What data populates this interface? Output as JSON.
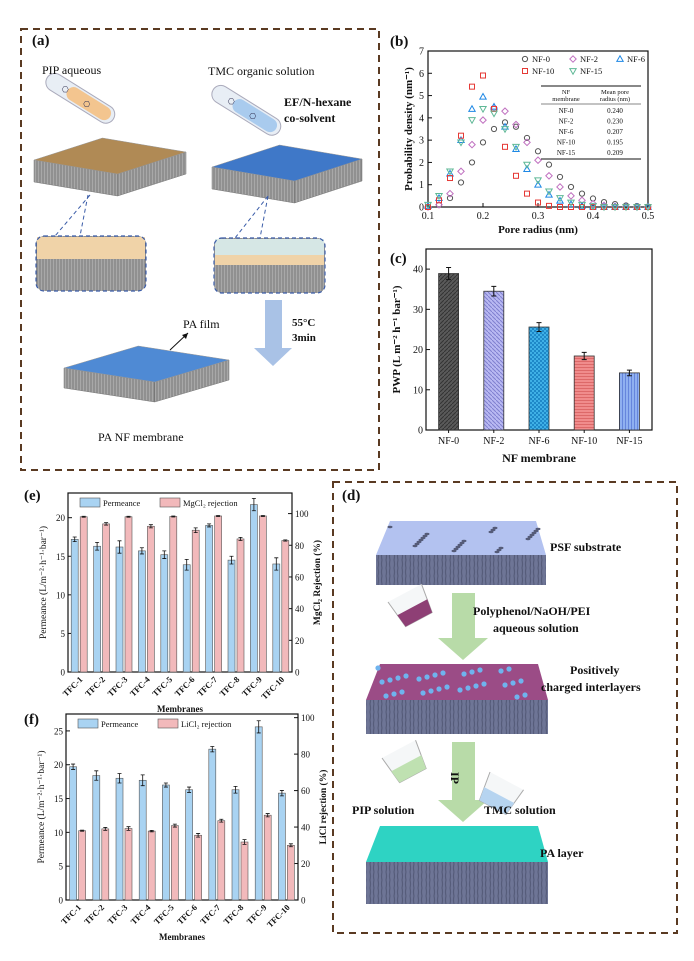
{
  "panel_a": {
    "label": "(a)",
    "pip_aqueous": "PIP aqueous",
    "tmc_organic": "TMC organic solution",
    "cosolvent_line1": "EF/N-hexane",
    "cosolvent_line2": "co-solvent",
    "pa_film": "PA film",
    "temperature": "55°C",
    "time": "3min",
    "pa_nf_membrane": "PA NF membrane"
  },
  "panel_d": {
    "label": "(d)",
    "psf_substrate": "PSF substrate",
    "solution_line1": "Polyphenol/NaOH/PEI",
    "solution_line2": "aqueous solution",
    "interlayer_line1": "Positively",
    "interlayer_line2": "charged interlayers",
    "ip": "IP",
    "pip_solution": "PIP solution",
    "tmc_solution": "TMC solution",
    "pa_layer": "PA layer"
  },
  "colors": {
    "frame": "#5a3a22",
    "nf0": "#555555",
    "nf2": "#c070c0",
    "nf6": "#1e88e5",
    "nf10": "#e53935",
    "nf15": "#5fb896",
    "permeance": "#a9d3f2",
    "rejection": "#f2b9bb"
  },
  "chart_data": [
    {
      "panel": "(b)",
      "type": "scatter",
      "xlabel": "Pore radius (nm)",
      "ylabel": "Probability density (nm⁻¹)",
      "xlim": [
        0.1,
        0.5
      ],
      "ylim": [
        0,
        7
      ],
      "xticks": [
        "0.1",
        "0.2",
        "0.3",
        "0.4",
        "0.5"
      ],
      "yticks": [
        "0",
        "1",
        "2",
        "3",
        "4",
        "5",
        "6",
        "7"
      ],
      "legend_position": "top-right",
      "x": [
        0.1,
        0.12,
        0.14,
        0.16,
        0.18,
        0.2,
        0.22,
        0.24,
        0.26,
        0.28,
        0.3,
        0.32,
        0.34,
        0.36,
        0.38,
        0.4,
        0.42,
        0.44,
        0.46,
        0.48,
        0.5
      ],
      "series": [
        {
          "name": "NF-0",
          "marker": "circle",
          "values": [
            0,
            0.1,
            0.4,
            1.1,
            2.0,
            2.9,
            3.5,
            3.8,
            3.6,
            3.1,
            2.5,
            1.9,
            1.35,
            0.9,
            0.6,
            0.38,
            0.22,
            0.13,
            0.07,
            0.04,
            0.02
          ]
        },
        {
          "name": "NF-2",
          "marker": "diamond",
          "values": [
            0,
            0.1,
            0.6,
            1.6,
            2.8,
            3.9,
            4.45,
            4.3,
            3.7,
            2.9,
            2.1,
            1.4,
            0.9,
            0.5,
            0.3,
            0.15,
            0.07,
            0.03,
            0.01,
            0,
            0
          ]
        },
        {
          "name": "NF-6",
          "marker": "triangle-up",
          "values": [
            0.05,
            0.4,
            1.5,
            3.0,
            4.4,
            4.95,
            4.5,
            3.6,
            2.6,
            1.7,
            1.0,
            0.55,
            0.28,
            0.12,
            0.05,
            0.02,
            0,
            0,
            0,
            0,
            0
          ]
        },
        {
          "name": "NF-10",
          "marker": "square",
          "values": [
            0,
            0.3,
            1.3,
            3.2,
            5.4,
            5.9,
            4.4,
            2.7,
            1.4,
            0.6,
            0.2,
            0.05,
            0,
            0,
            0,
            0,
            0,
            0,
            0,
            0,
            0
          ]
        },
        {
          "name": "NF-15",
          "marker": "triangle-down",
          "values": [
            0.1,
            0.5,
            1.6,
            2.9,
            3.9,
            4.4,
            4.2,
            3.5,
            2.7,
            1.9,
            1.2,
            0.7,
            0.4,
            0.2,
            0.1,
            0.04,
            0,
            0,
            0,
            0,
            0
          ]
        }
      ],
      "inset_table": {
        "headers": [
          "NF membrane",
          "Mean pore radius (nm)"
        ],
        "rows": [
          [
            "NF-0",
            "0.240"
          ],
          [
            "NF-2",
            "0.230"
          ],
          [
            "NF-6",
            "0.207"
          ],
          [
            "NF-10",
            "0.195"
          ],
          [
            "NF-15",
            "0.209"
          ]
        ]
      }
    },
    {
      "panel": "(c)",
      "type": "bar",
      "xlabel": "NF membrane",
      "ylabel": "PWP (L m⁻² h⁻¹ bar⁻¹)",
      "ylim": [
        0,
        45
      ],
      "yticks": [
        "0",
        "10",
        "20",
        "30",
        "40"
      ],
      "categories": [
        "NF-0",
        "NF-2",
        "NF-6",
        "NF-10",
        "NF-15"
      ],
      "values": [
        38.9,
        34.5,
        25.6,
        18.4,
        14.2
      ],
      "errors": [
        1.5,
        1.2,
        1.1,
        0.9,
        0.7
      ]
    },
    {
      "panel": "(e)",
      "type": "bar",
      "xlabel": "Membranes",
      "ylabel": "Permeance (L/m⁻²·h⁻¹·bar⁻¹)",
      "ylabel_right": "MgCl₂ Rejection (%)",
      "ylim": [
        0,
        23.2
      ],
      "ylim_right": [
        0,
        113
      ],
      "yticks": [
        "0",
        "5",
        "10",
        "15",
        "20"
      ],
      "yticks_right": [
        "0",
        "20",
        "40",
        "60",
        "80",
        "100"
      ],
      "legend_position": "top",
      "categories": [
        "TFC-1",
        "TFC-2",
        "TFC-3",
        "TFC-4",
        "TFC-5",
        "TFC-6",
        "TFC-7",
        "TFC-8",
        "TFC-9",
        "TFC-10"
      ],
      "series": [
        {
          "name": "Permeance",
          "axis": "left",
          "values": [
            17.2,
            16.3,
            16.2,
            15.7,
            15.2,
            13.9,
            19.0,
            14.5,
            21.7,
            14.0
          ],
          "errors": [
            0.3,
            0.5,
            0.8,
            0.4,
            0.5,
            0.7,
            0.2,
            0.5,
            0.8,
            0.8
          ]
        },
        {
          "name": "MgCl₂ rejection",
          "axis": "right",
          "values": [
            98.0,
            93.5,
            98.0,
            92.0,
            98.2,
            89.5,
            98.5,
            84.0,
            98.5,
            83.0
          ],
          "errors": [
            0.3,
            0.8,
            0.3,
            1.0,
            0.3,
            1.5,
            0.3,
            1.0,
            0.3,
            0.4
          ]
        }
      ]
    },
    {
      "panel": "(f)",
      "type": "bar",
      "xlabel": "Membranes",
      "ylabel": "Permeance (L/m⁻²·h⁻¹·bar⁻¹)",
      "ylabel_right": "LiCl rejection (%)",
      "ylim": [
        0,
        27.5
      ],
      "ylim_right": [
        0,
        102
      ],
      "yticks": [
        "0",
        "5",
        "10",
        "15",
        "20",
        "25"
      ],
      "yticks_right": [
        "0",
        "20",
        "40",
        "60",
        "80",
        "100"
      ],
      "legend_position": "top",
      "categories": [
        "TFC-1",
        "TFC-2",
        "TFC-3",
        "TFC-4",
        "TFC-5",
        "TFC-6",
        "TFC-7",
        "TFC-8",
        "TFC-9",
        "TFC-10"
      ],
      "series": [
        {
          "name": "Permeance",
          "axis": "left",
          "values": [
            19.7,
            18.4,
            18.0,
            17.7,
            17.0,
            16.3,
            22.3,
            16.3,
            25.6,
            15.8
          ],
          "errors": [
            0.4,
            0.7,
            0.7,
            0.8,
            0.3,
            0.4,
            0.4,
            0.5,
            0.9,
            0.4
          ]
        },
        {
          "name": "LiCl₂ rejection",
          "axis": "right",
          "values": [
            38.0,
            39.0,
            39.2,
            37.8,
            40.8,
            35.5,
            43.5,
            31.8,
            46.5,
            30.0
          ],
          "errors": [
            0.3,
            0.8,
            1.0,
            0.4,
            0.8,
            1.0,
            0.8,
            1.3,
            0.9,
            0.8
          ]
        }
      ]
    }
  ]
}
